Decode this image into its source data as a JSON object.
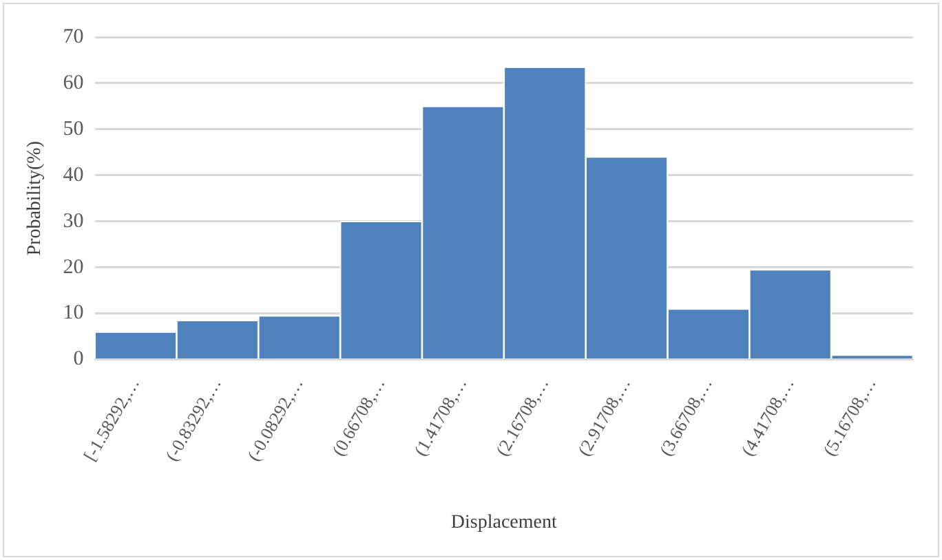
{
  "chart_data": {
    "type": "bar",
    "xlabel": "Displacement",
    "ylabel": "Probability(%)",
    "categories": [
      "[-1.58292,…",
      "(-0.83292,…",
      "(-0.08292,…",
      "(0.66708,…",
      "(1.41708,…",
      "(2.16708,…",
      "(2.91708,…",
      "(3.66708,…",
      "(4.41708,…",
      "(5.16708,…"
    ],
    "values": [
      6,
      8.5,
      9.5,
      30,
      55,
      63.5,
      44,
      11,
      19.5,
      1
    ],
    "color": "#4f81bd",
    "ylim": [
      0,
      70
    ],
    "yticks": [
      0,
      10,
      20,
      30,
      40,
      50,
      60,
      70
    ],
    "grid": "y",
    "legend": false
  }
}
